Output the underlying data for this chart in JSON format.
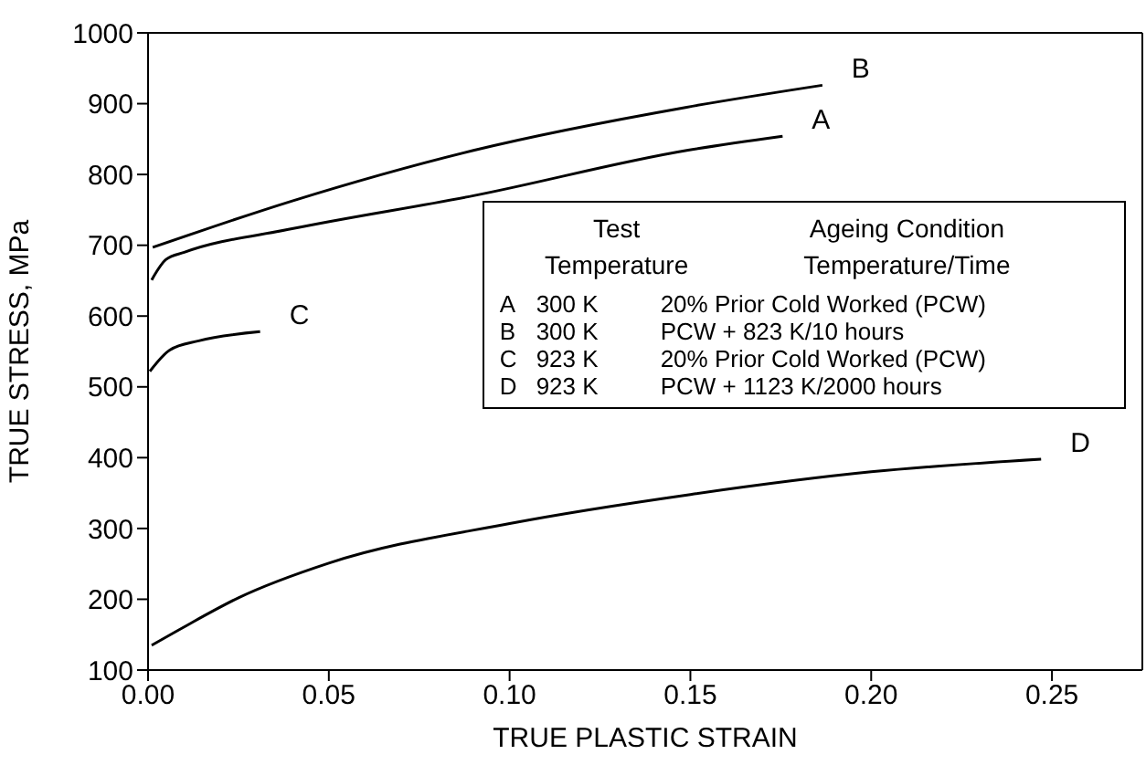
{
  "chart_data": {
    "type": "line",
    "xlabel": "TRUE PLASTIC STRAIN",
    "ylabel": "TRUE STRESS, MPa",
    "xlim": [
      0,
      0.275
    ],
    "ylim": [
      100,
      1000
    ],
    "xticks": [
      {
        "value": 0,
        "label": "0.00"
      },
      {
        "value": 0.05,
        "label": "0.05"
      },
      {
        "value": 0.1,
        "label": "0.10"
      },
      {
        "value": 0.15,
        "label": "0.15"
      },
      {
        "value": 0.2,
        "label": "0.20"
      },
      {
        "value": 0.25,
        "label": "0.25"
      }
    ],
    "yticks": [
      100,
      200,
      300,
      400,
      500,
      600,
      700,
      800,
      900,
      1000
    ],
    "marker": "none",
    "line_style": "solid",
    "series": [
      {
        "name": "A",
        "color": "#000000",
        "x": [
          0.001,
          0.005,
          0.01,
          0.0395,
          0.09,
          0.149,
          0.1755
        ],
        "values": [
          651,
          680,
          690,
          723,
          770,
          834,
          854
        ]
      },
      {
        "name": "B",
        "color": "#000000",
        "x": [
          0.0013,
          0.0395,
          0.09,
          0.149,
          0.1865
        ],
        "values": [
          697,
          762,
          834,
          895,
          926
        ]
      },
      {
        "name": "C",
        "color": "#000000",
        "x": [
          0.0005,
          0.006,
          0.014,
          0.031
        ],
        "values": [
          522,
          552,
          565,
          578
        ]
      },
      {
        "name": "D",
        "color": "#000000",
        "x": [
          0.001,
          0.01,
          0.025,
          0.05,
          0.1,
          0.15,
          0.2,
          0.247
        ],
        "values": [
          135,
          161,
          202,
          251,
          307,
          348,
          380,
          398
        ]
      }
    ],
    "annotations": [
      "Test",
      "Ageing Condition",
      "Temperature",
      "Temperature/Time",
      "A",
      "300 K",
      "20% Prior Cold Worked (PCW)",
      "B",
      "300 K",
      "PCW + 823 K/10 hours",
      "C",
      "923 K",
      "20% Prior Cold Worked (PCW)",
      "D",
      "923 K",
      "PCW + 1123 K/2000 hours"
    ]
  }
}
